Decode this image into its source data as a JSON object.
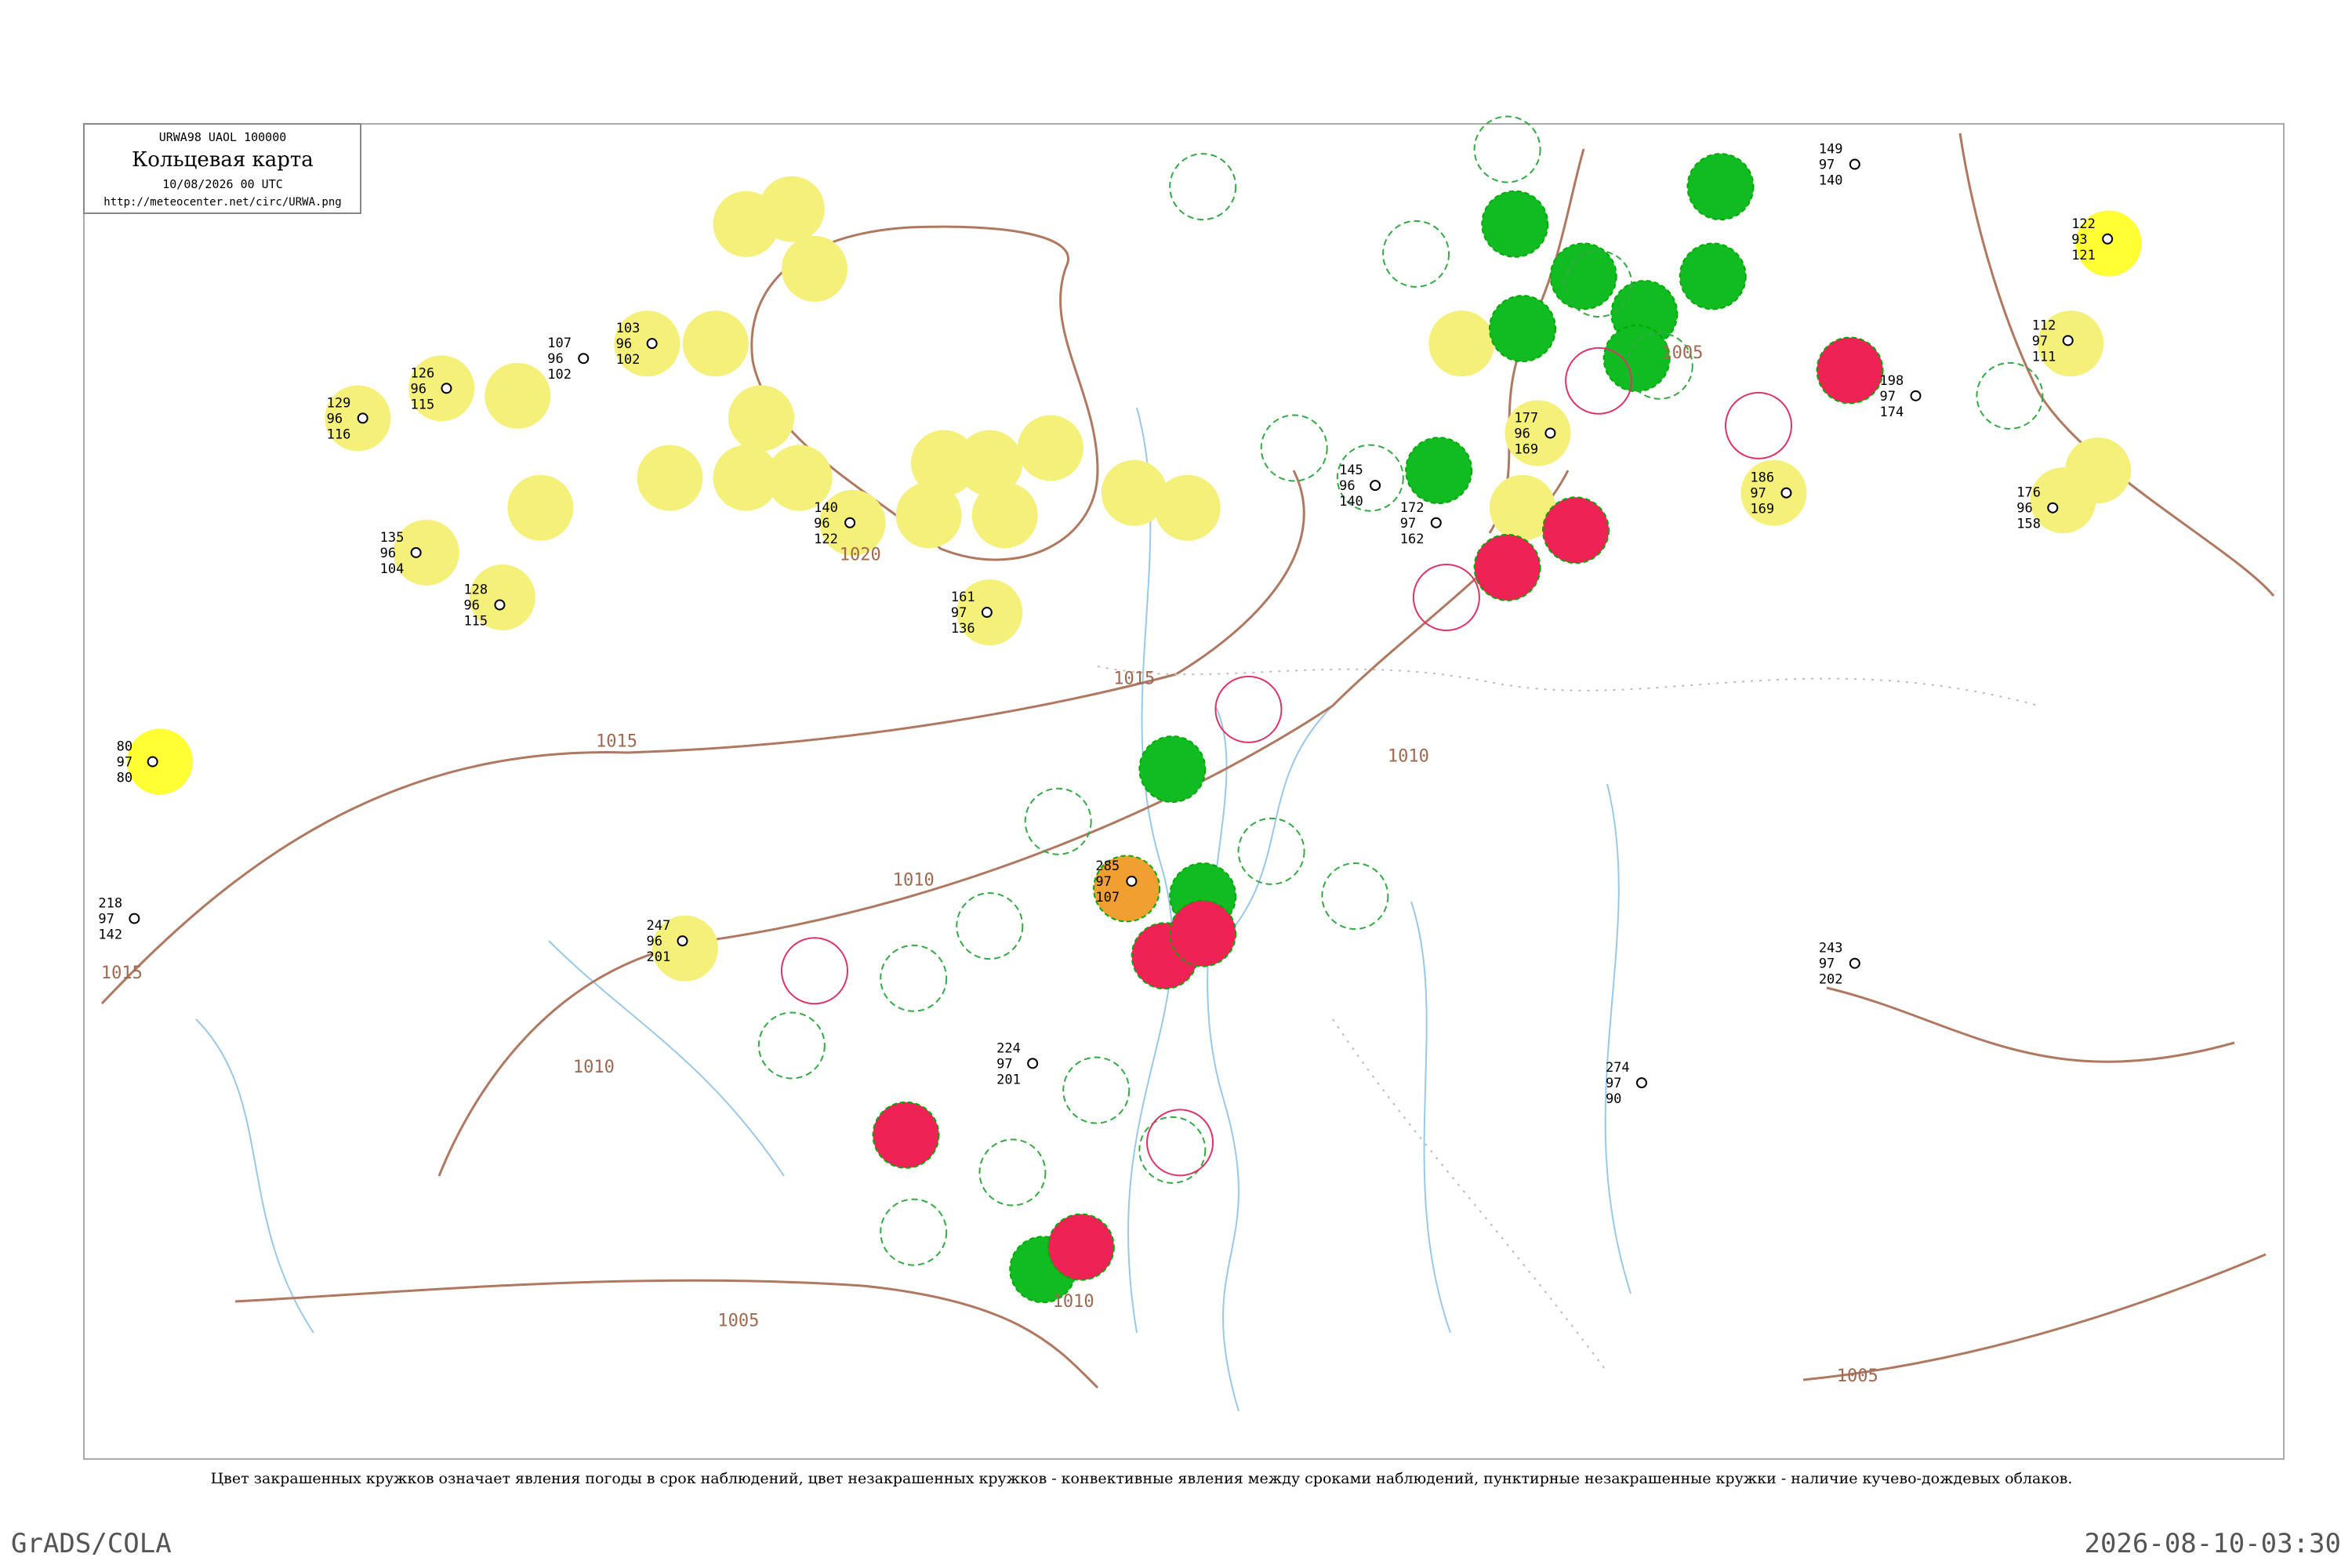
{
  "header": {
    "code": "URWA98 UAOL 100000",
    "title": "Кольцевая карта",
    "time": "10/08/2026 00 UTC",
    "url": "http://meteocenter.net/circ/URWA.png"
  },
  "isobars": [
    "1020",
    "1015",
    "1015",
    "1010",
    "1010",
    "1010",
    "1005",
    "1005",
    "1005",
    "1010",
    "1015"
  ],
  "stations": [
    {
      "a": "129",
      "b": "96",
      "c": "116"
    },
    {
      "a": "126",
      "b": "96",
      "c": "115"
    },
    {
      "a": "103",
      "b": "96",
      "c": "102"
    },
    {
      "a": "107",
      "b": "96",
      "c": "102"
    },
    {
      "a": "140",
      "b": "96",
      "c": "122"
    },
    {
      "a": "145",
      "b": "96",
      "c": "140"
    },
    {
      "a": "177",
      "b": "96",
      "c": "169"
    },
    {
      "a": "186",
      "b": "97",
      "c": "169"
    },
    {
      "a": "176",
      "b": "96",
      "c": "158"
    },
    {
      "a": "285",
      "b": "97",
      "c": "107"
    },
    {
      "a": "247",
      "b": "96",
      "c": "201"
    },
    {
      "a": "80",
      "b": "97",
      "c": "80"
    },
    {
      "a": "122",
      "b": "93",
      "c": "121"
    },
    {
      "a": "112",
      "b": "97",
      "c": "111"
    },
    {
      "a": "172",
      "b": "97",
      "c": "162"
    },
    {
      "a": "128",
      "b": "96",
      "c": "115"
    },
    {
      "a": "135",
      "b": "96",
      "c": "104"
    },
    {
      "a": "161",
      "b": "97",
      "c": "136"
    },
    {
      "a": "224",
      "b": "97",
      "c": "201"
    },
    {
      "a": "218",
      "b": "97",
      "c": "142"
    },
    {
      "a": "149",
      "b": "97",
      "c": "140"
    },
    {
      "a": "198",
      "b": "97",
      "c": "174"
    },
    {
      "a": "243",
      "b": "97",
      "c": "202"
    },
    {
      "a": "274",
      "b": "97",
      "c": "90"
    }
  ],
  "caption": "Цвет закрашенных кружков означает явления погоды в срок наблюдений, цвет незакрашенных кружков - конвективные явления между сроками наблюдений, пунктирные незакрашенные кружки - наличие кучево-дождевых облаков.",
  "footer": {
    "left": "GrADS/COLA",
    "right": "2026-08-10-03:30"
  }
}
